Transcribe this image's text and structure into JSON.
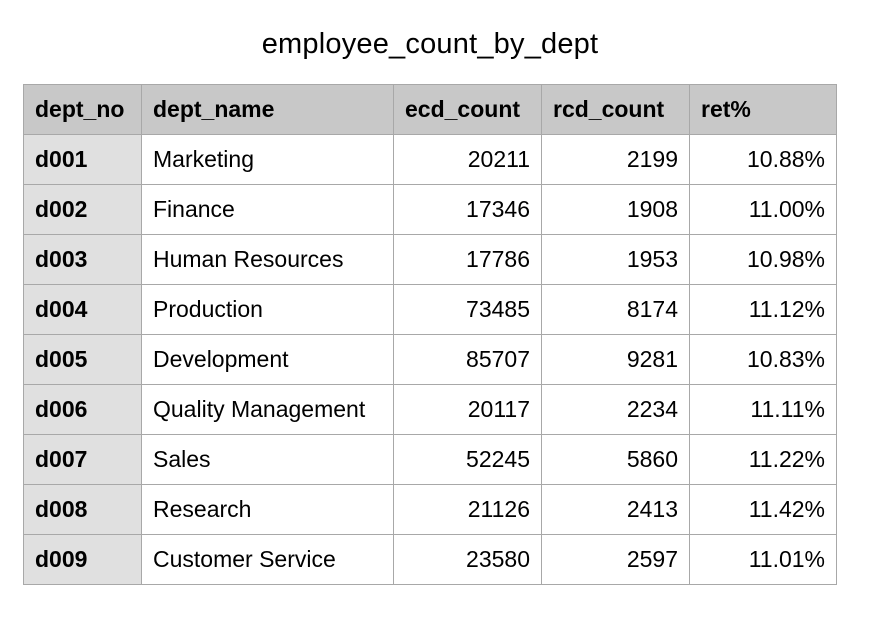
{
  "title": "employee_count_by_dept",
  "columns": [
    "dept_no",
    "dept_name",
    "ecd_count",
    "rcd_count",
    "ret%"
  ],
  "rows": [
    [
      "d001",
      "Marketing",
      "20211",
      "2199",
      "10.88%"
    ],
    [
      "d002",
      "Finance",
      "17346",
      "1908",
      "11.00%"
    ],
    [
      "d003",
      "Human Resources",
      "17786",
      "1953",
      "10.98%"
    ],
    [
      "d004",
      "Production",
      "73485",
      "8174",
      "11.12%"
    ],
    [
      "d005",
      "Development",
      "85707",
      "9281",
      "10.83%"
    ],
    [
      "d006",
      "Quality Management",
      "20117",
      "2234",
      "11.11%"
    ],
    [
      "d007",
      "Sales",
      "52245",
      "5860",
      "11.22%"
    ],
    [
      "d008",
      "Research",
      "21126",
      "2413",
      "11.42%"
    ],
    [
      "d009",
      "Customer Service",
      "23580",
      "2597",
      "11.01%"
    ]
  ]
}
